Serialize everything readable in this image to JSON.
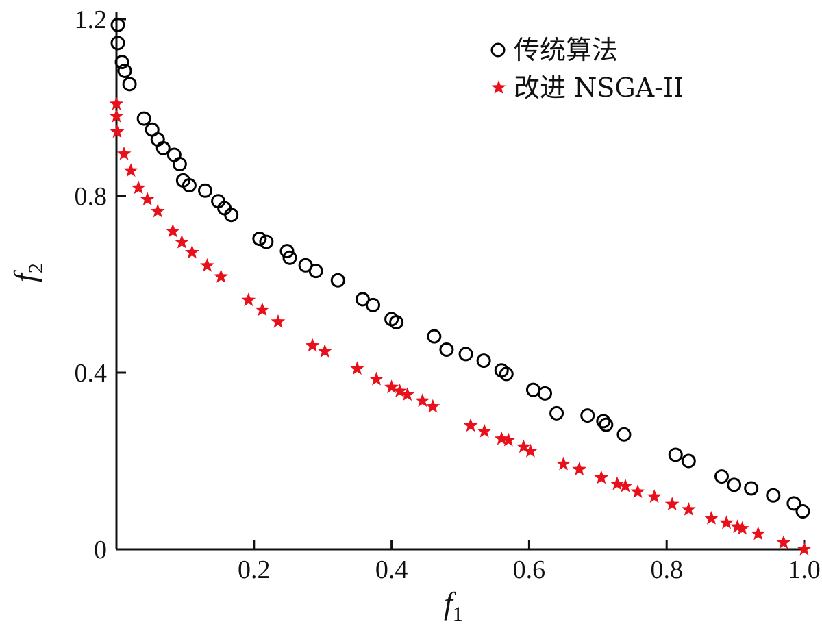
{
  "chart_data": {
    "type": "scatter",
    "title": "",
    "xlabel": "f",
    "xlabel_sub": "1",
    "ylabel": "f",
    "ylabel_sub": "2",
    "xlim": [
      0,
      1.0
    ],
    "ylim": [
      0,
      1.2
    ],
    "x_ticks": [
      0.2,
      0.4,
      0.6,
      0.8,
      1.0
    ],
    "x_tick_labels": [
      "0.2",
      "0.4",
      "0.6",
      "0.8",
      "1.0"
    ],
    "y_ticks": [
      0,
      0.4,
      0.8,
      1.2
    ],
    "y_tick_labels": [
      "0",
      "0.4",
      "0.8",
      "1.2"
    ],
    "grid": false,
    "legend_position": "top-right",
    "series": [
      {
        "name": "传统算法",
        "marker": "circle",
        "color": "#000000",
        "points": [
          [
            0.002,
            1.187
          ],
          [
            0.002,
            1.146
          ],
          [
            0.008,
            1.103
          ],
          [
            0.012,
            1.083
          ],
          [
            0.019,
            1.053
          ],
          [
            0.04,
            0.975
          ],
          [
            0.052,
            0.95
          ],
          [
            0.06,
            0.928
          ],
          [
            0.068,
            0.908
          ],
          [
            0.084,
            0.893
          ],
          [
            0.092,
            0.872
          ],
          [
            0.097,
            0.835
          ],
          [
            0.106,
            0.824
          ],
          [
            0.129,
            0.812
          ],
          [
            0.148,
            0.788
          ],
          [
            0.157,
            0.772
          ],
          [
            0.167,
            0.757
          ],
          [
            0.208,
            0.703
          ],
          [
            0.218,
            0.696
          ],
          [
            0.248,
            0.675
          ],
          [
            0.252,
            0.66
          ],
          [
            0.275,
            0.643
          ],
          [
            0.29,
            0.63
          ],
          [
            0.322,
            0.609
          ],
          [
            0.358,
            0.566
          ],
          [
            0.373,
            0.553
          ],
          [
            0.4,
            0.521
          ],
          [
            0.407,
            0.514
          ],
          [
            0.462,
            0.482
          ],
          [
            0.48,
            0.452
          ],
          [
            0.508,
            0.442
          ],
          [
            0.534,
            0.427
          ],
          [
            0.56,
            0.405
          ],
          [
            0.567,
            0.397
          ],
          [
            0.606,
            0.361
          ],
          [
            0.623,
            0.353
          ],
          [
            0.64,
            0.308
          ],
          [
            0.685,
            0.303
          ],
          [
            0.708,
            0.29
          ],
          [
            0.712,
            0.282
          ],
          [
            0.738,
            0.26
          ],
          [
            0.813,
            0.214
          ],
          [
            0.832,
            0.2
          ],
          [
            0.88,
            0.165
          ],
          [
            0.898,
            0.146
          ],
          [
            0.923,
            0.138
          ],
          [
            0.955,
            0.122
          ],
          [
            0.985,
            0.104
          ],
          [
            0.998,
            0.086
          ]
        ]
      },
      {
        "name": "改进 NSGA-II",
        "marker": "star",
        "color": "#e8101a",
        "points": [
          [
            0.0,
            1.008
          ],
          [
            0.0,
            0.98
          ],
          [
            0.001,
            0.945
          ],
          [
            0.011,
            0.895
          ],
          [
            0.021,
            0.857
          ],
          [
            0.032,
            0.818
          ],
          [
            0.045,
            0.792
          ],
          [
            0.06,
            0.765
          ],
          [
            0.082,
            0.72
          ],
          [
            0.095,
            0.695
          ],
          [
            0.11,
            0.672
          ],
          [
            0.132,
            0.642
          ],
          [
            0.152,
            0.617
          ],
          [
            0.192,
            0.564
          ],
          [
            0.212,
            0.542
          ],
          [
            0.235,
            0.515
          ],
          [
            0.285,
            0.461
          ],
          [
            0.303,
            0.448
          ],
          [
            0.35,
            0.409
          ],
          [
            0.378,
            0.385
          ],
          [
            0.4,
            0.367
          ],
          [
            0.412,
            0.358
          ],
          [
            0.423,
            0.35
          ],
          [
            0.445,
            0.336
          ],
          [
            0.46,
            0.323
          ],
          [
            0.515,
            0.28
          ],
          [
            0.535,
            0.267
          ],
          [
            0.56,
            0.25
          ],
          [
            0.57,
            0.247
          ],
          [
            0.592,
            0.232
          ],
          [
            0.602,
            0.222
          ],
          [
            0.65,
            0.193
          ],
          [
            0.673,
            0.181
          ],
          [
            0.705,
            0.162
          ],
          [
            0.728,
            0.148
          ],
          [
            0.74,
            0.143
          ],
          [
            0.758,
            0.13
          ],
          [
            0.782,
            0.119
          ],
          [
            0.808,
            0.102
          ],
          [
            0.832,
            0.09
          ],
          [
            0.865,
            0.07
          ],
          [
            0.887,
            0.06
          ],
          [
            0.903,
            0.051
          ],
          [
            0.91,
            0.047
          ],
          [
            0.933,
            0.035
          ],
          [
            0.97,
            0.015
          ],
          [
            1.0,
            0.0
          ]
        ]
      }
    ]
  }
}
